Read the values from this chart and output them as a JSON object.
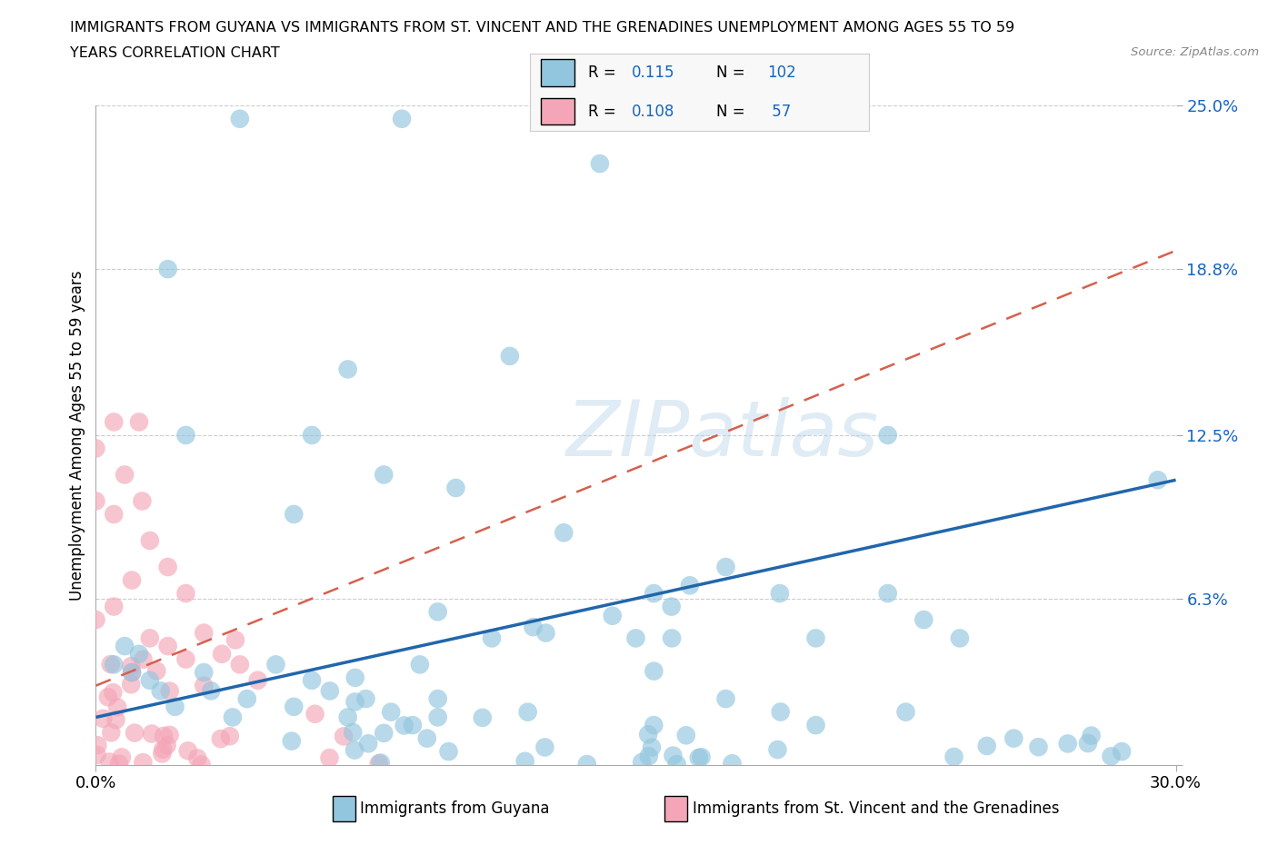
{
  "title_line1": "IMMIGRANTS FROM GUYANA VS IMMIGRANTS FROM ST. VINCENT AND THE GRENADINES UNEMPLOYMENT AMONG AGES 55 TO 59",
  "title_line2": "YEARS CORRELATION CHART",
  "source_text": "Source: ZipAtlas.com",
  "ylabel": "Unemployment Among Ages 55 to 59 years",
  "xlim": [
    0.0,
    0.3
  ],
  "ylim": [
    0.0,
    0.25
  ],
  "x_tick_labels": [
    "0.0%",
    "30.0%"
  ],
  "y_tick_labels": [
    "",
    "6.3%",
    "12.5%",
    "18.8%",
    "25.0%"
  ],
  "y_ticks": [
    0.0,
    0.063,
    0.125,
    0.188,
    0.25
  ],
  "watermark": "ZIPatlas",
  "color_guyana": "#92c5de",
  "color_stvincent": "#f4a6b8",
  "trend_color_guyana": "#2166ac",
  "trend_color_stvincent": "#d6604d",
  "legend_blue_color": "#4393c3",
  "legend_text_color": "#1565c0",
  "background_color": "#ffffff",
  "grid_color": "#cccccc",
  "legend_bg": "#f8f8f8",
  "guyana_label": "Immigrants from Guyana",
  "stvincent_label": "Immigrants from St. Vincent and the Grenadines",
  "trend_guyana_x0": 0.0,
  "trend_guyana_x1": 0.3,
  "trend_guyana_y0": 0.018,
  "trend_guyana_y1": 0.108,
  "trend_sv_x0": 0.0,
  "trend_sv_x1": 0.3,
  "trend_sv_y0": 0.03,
  "trend_sv_y1": 0.195
}
